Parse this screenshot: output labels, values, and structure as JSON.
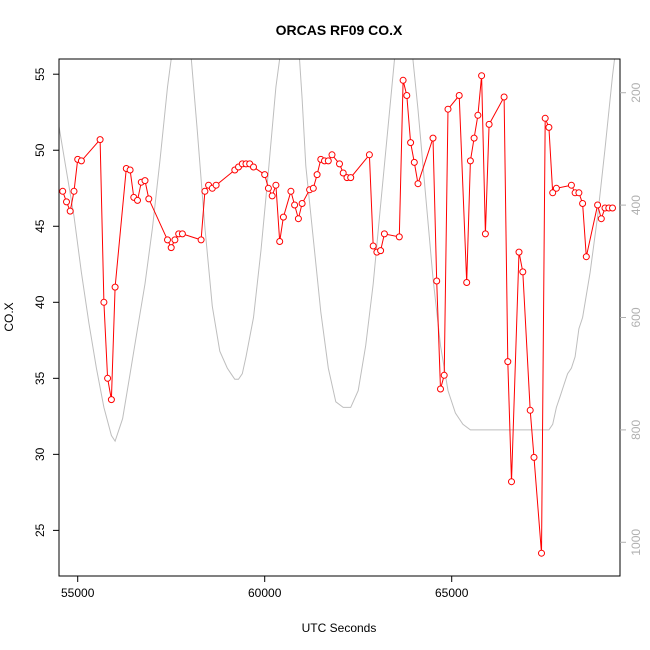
{
  "chart_data": {
    "type": "line",
    "title": "ORCAS RF09 CO.X",
    "xlabel": "UTC Seconds",
    "ylabel": "CO.X",
    "xlim": [
      54500,
      69500
    ],
    "ylim": [
      22,
      56
    ],
    "x_ticks": [
      55000,
      60000,
      65000
    ],
    "x_tick_labels": [
      "55000",
      "60000",
      "65000"
    ],
    "y_ticks": [
      25,
      30,
      35,
      40,
      45,
      50,
      55
    ],
    "y_tick_labels": [
      "25",
      "30",
      "35",
      "40",
      "45",
      "50",
      "55"
    ],
    "y2_lim": [
      1060,
      140
    ],
    "y2_reversed": true,
    "y2_ticks": [
      200,
      400,
      600,
      800,
      1000
    ],
    "y2_tick_labels": [
      "200",
      "400",
      "600",
      "800",
      "1000"
    ],
    "grid": false,
    "colors": {
      "series": "#ff0000",
      "secondary": "#bebebe",
      "axis": "#000000",
      "right_axis": "#b0b0b0"
    },
    "series": [
      {
        "style": "line+points",
        "x": [
          54600,
          54700,
          54800,
          54900,
          55000,
          55100,
          55600,
          55700,
          55800,
          55900,
          56000,
          56300,
          56400,
          56500,
          56600,
          56700,
          56800,
          56900,
          57400,
          57500,
          57600,
          57700,
          57800,
          58300,
          58400,
          58500,
          58600,
          58700,
          59200,
          59300,
          59400,
          59500,
          59600,
          59700,
          60000,
          60100,
          60200,
          60300,
          60400,
          60500,
          60700,
          60800,
          60900,
          61000,
          61200,
          61300,
          61400,
          61500,
          61600,
          61700,
          61800,
          62000,
          62100,
          62200,
          62300,
          62800,
          62900,
          63000,
          63100,
          63200,
          63600,
          63700,
          63800,
          63900,
          64000,
          64100,
          64500,
          64600,
          64700,
          64800,
          64900,
          65200,
          65400,
          65500,
          65600,
          65700,
          65800,
          65900,
          66000,
          66400,
          66500,
          66600,
          66800,
          66900,
          67100,
          67200,
          67400,
          67500,
          67600,
          67700,
          67800,
          68200,
          68300,
          68400,
          68500,
          68600,
          68900,
          69000,
          69100,
          69200,
          69300
        ],
        "y": [
          47.3,
          46.6,
          46.0,
          47.3,
          49.4,
          49.3,
          50.7,
          40.0,
          35.0,
          33.6,
          41.0,
          48.8,
          48.7,
          46.9,
          46.7,
          47.9,
          48.0,
          46.8,
          44.1,
          43.6,
          44.1,
          44.5,
          44.5,
          44.1,
          47.3,
          47.7,
          47.5,
          47.7,
          48.7,
          48.9,
          49.1,
          49.1,
          49.1,
          48.9,
          48.4,
          47.5,
          47.0,
          47.7,
          44.0,
          45.6,
          47.3,
          46.4,
          45.5,
          46.5,
          47.4,
          47.5,
          48.4,
          49.4,
          49.3,
          49.3,
          49.7,
          49.1,
          48.5,
          48.2,
          48.2,
          49.7,
          43.7,
          43.3,
          43.4,
          44.5,
          44.3,
          54.6,
          53.6,
          50.5,
          49.2,
          47.8,
          50.8,
          41.4,
          34.3,
          35.2,
          52.7,
          53.6,
          41.3,
          49.3,
          50.8,
          52.3,
          54.9,
          44.5,
          51.7,
          53.5,
          36.1,
          28.2,
          43.3,
          42.0,
          32.9,
          29.8,
          23.5,
          52.1,
          51.5,
          47.2,
          47.5,
          47.7,
          47.2,
          47.2,
          46.5,
          43.0,
          46.4,
          45.5,
          46.2,
          46.2,
          46.2
        ]
      },
      {
        "style": "line",
        "axis": "right",
        "x": [
          54500,
          54700,
          54900,
          55100,
          55300,
          55500,
          55700,
          55900,
          56000,
          56200,
          56400,
          56600,
          56800,
          57000,
          57200,
          57400,
          57600,
          57800,
          58000,
          58200,
          58400,
          58600,
          58800,
          59000,
          59100,
          59200,
          59300,
          59400,
          59500,
          59700,
          59900,
          60100,
          60300,
          60500,
          60700,
          60900,
          61000,
          61100,
          61300,
          61500,
          61700,
          61900,
          62100,
          62300,
          62500,
          62700,
          62900,
          63100,
          63300,
          63500,
          63700,
          63900,
          64100,
          64300,
          64500,
          64700,
          64900,
          65100,
          65300,
          65500,
          65700,
          65900,
          66100,
          66300,
          66500,
          66700,
          66900,
          67100,
          67300,
          67500,
          67600,
          67700,
          67800,
          67900,
          68000,
          68100,
          68200,
          68300,
          68400,
          68500,
          68700,
          68900,
          69100,
          69300,
          69500
        ],
        "y": [
          260,
          340,
          420,
          520,
          610,
          690,
          760,
          810,
          820,
          780,
          700,
          620,
          540,
          440,
          320,
          190,
          90,
          50,
          110,
          270,
          440,
          580,
          660,
          690,
          700,
          710,
          710,
          700,
          670,
          600,
          480,
          340,
          190,
          90,
          60,
          110,
          210,
          330,
          460,
          590,
          690,
          750,
          760,
          760,
          730,
          650,
          540,
          400,
          260,
          120,
          50,
          100,
          230,
          380,
          530,
          650,
          730,
          770,
          790,
          800,
          800,
          800,
          800,
          800,
          800,
          800,
          800,
          800,
          800,
          800,
          800,
          790,
          760,
          740,
          720,
          700,
          690,
          670,
          620,
          600,
          520,
          420,
          300,
          170,
          60
        ]
      }
    ]
  }
}
